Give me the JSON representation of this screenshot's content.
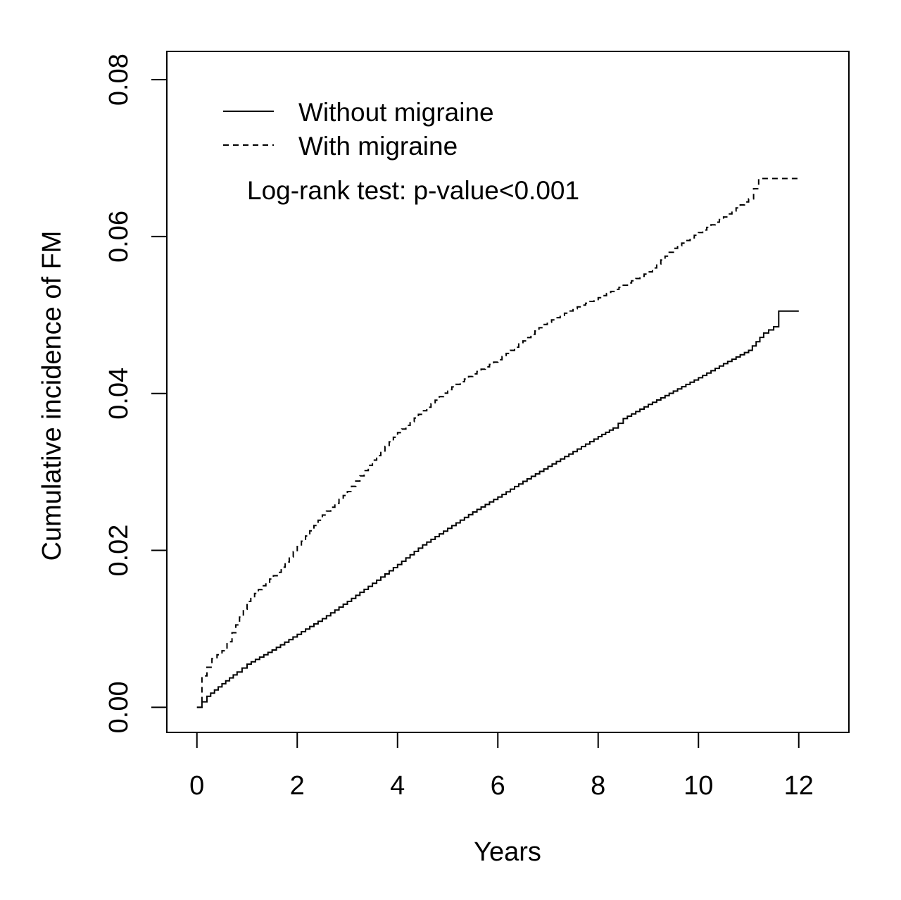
{
  "chart_data": {
    "type": "line",
    "title": "",
    "xlabel": "Years",
    "ylabel": "Cumulative incidence of FM",
    "xlim": [
      -0.6,
      13.0
    ],
    "ylim": [
      -0.0032,
      0.0836
    ],
    "x_ticks": [
      0,
      2,
      4,
      6,
      8,
      10,
      12
    ],
    "x_tick_labels": [
      "0",
      "2",
      "4",
      "6",
      "8",
      "10",
      "12"
    ],
    "y_ticks": [
      0.0,
      0.02,
      0.04,
      0.06,
      0.08
    ],
    "y_tick_labels": [
      "0.00",
      "0.02",
      "0.04",
      "0.06",
      "0.08"
    ],
    "grid": false,
    "legend": {
      "placement": "top-left",
      "entries": [
        "Without migraine",
        "With migraine"
      ]
    },
    "annotation": "Log-rank test: p-value<0.001",
    "series": [
      {
        "name": "Without migraine",
        "line_style": "solid",
        "step": true,
        "x": [
          0,
          0.2,
          0.5,
          0.8,
          1.0,
          1.5,
          2.0,
          2.5,
          3.0,
          3.5,
          4.0,
          4.5,
          5.0,
          5.5,
          6.0,
          6.5,
          7.0,
          7.5,
          8.0,
          8.3,
          8.5,
          9.0,
          9.5,
          10.0,
          10.5,
          11.0,
          11.3,
          11.5,
          11.6,
          12.0
        ],
        "y": [
          0.0,
          0.0014,
          0.003,
          0.0045,
          0.0055,
          0.0073,
          0.0093,
          0.0113,
          0.0135,
          0.0158,
          0.0182,
          0.0207,
          0.0228,
          0.0249,
          0.0268,
          0.0288,
          0.0307,
          0.0326,
          0.0345,
          0.0356,
          0.0368,
          0.0386,
          0.0403,
          0.042,
          0.0438,
          0.0455,
          0.0477,
          0.0485,
          0.0505,
          0.0505
        ]
      },
      {
        "name": "With migraine",
        "line_style": "dashed",
        "step": true,
        "x": [
          0,
          0.1,
          0.3,
          0.5,
          0.7,
          1.0,
          1.3,
          1.6,
          2.0,
          2.5,
          3.0,
          3.5,
          4.0,
          4.5,
          5.0,
          5.5,
          6.0,
          6.5,
          6.9,
          7.5,
          8.0,
          8.5,
          9.0,
          9.5,
          10.0,
          10.5,
          11.0,
          11.2,
          12.0
        ],
        "y": [
          0.0,
          0.004,
          0.0062,
          0.0072,
          0.0095,
          0.0135,
          0.0155,
          0.0172,
          0.0205,
          0.0245,
          0.0275,
          0.0315,
          0.035,
          0.0378,
          0.0405,
          0.0425,
          0.0443,
          0.0467,
          0.0488,
          0.0508,
          0.0522,
          0.0538,
          0.0555,
          0.0585,
          0.0605,
          0.0625,
          0.0648,
          0.0674,
          0.0674
        ]
      }
    ]
  }
}
